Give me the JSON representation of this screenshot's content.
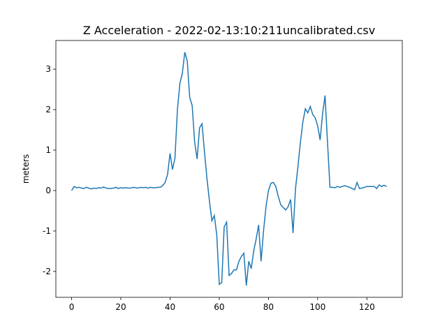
{
  "chart_data": {
    "type": "line",
    "title": "Z Acceleration - 2022-02-13:10:211uncalibrated.csv",
    "y_label": "meters",
    "x": [
      0,
      1,
      2,
      3,
      4,
      5,
      6,
      7,
      8,
      9,
      10,
      11,
      12,
      13,
      14,
      15,
      16,
      17,
      18,
      19,
      20,
      21,
      22,
      23,
      24,
      25,
      26,
      27,
      28,
      29,
      30,
      31,
      32,
      33,
      34,
      35,
      36,
      37,
      38,
      39,
      40,
      41,
      42,
      43,
      44,
      45,
      46,
      47,
      48,
      49,
      50,
      51,
      52,
      53,
      54,
      55,
      56,
      57,
      58,
      59,
      60,
      61,
      62,
      63,
      64,
      65,
      66,
      67,
      68,
      69,
      70,
      71,
      72,
      73,
      74,
      75,
      76,
      77,
      78,
      79,
      80,
      81,
      82,
      83,
      84,
      85,
      86,
      87,
      88,
      89,
      90,
      91,
      92,
      93,
      94,
      95,
      96,
      97,
      98,
      99,
      100,
      101,
      102,
      103,
      104,
      105,
      106,
      107,
      108,
      109,
      110,
      111,
      112,
      113,
      114,
      115,
      116,
      117,
      118,
      119,
      120,
      121,
      122,
      123,
      124,
      125,
      126,
      127,
      128
    ],
    "series": [
      {
        "color": "#1f77b4",
        "values": [
          0.0,
          0.1,
          0.07,
          0.08,
          0.06,
          0.05,
          0.08,
          0.06,
          0.04,
          0.06,
          0.05,
          0.07,
          0.06,
          0.09,
          0.06,
          0.05,
          0.05,
          0.06,
          0.08,
          0.05,
          0.07,
          0.06,
          0.07,
          0.06,
          0.06,
          0.08,
          0.07,
          0.06,
          0.08,
          0.07,
          0.08,
          0.06,
          0.08,
          0.07,
          0.07,
          0.08,
          0.08,
          0.12,
          0.2,
          0.4,
          0.92,
          0.52,
          0.8,
          2.0,
          2.65,
          2.9,
          3.42,
          3.2,
          2.3,
          2.1,
          1.2,
          0.78,
          1.55,
          1.65,
          0.95,
          0.3,
          -0.25,
          -0.75,
          -0.62,
          -1.1,
          -2.32,
          -2.28,
          -0.9,
          -0.78,
          -2.1,
          -2.05,
          -1.96,
          -1.96,
          -1.75,
          -1.63,
          -1.55,
          -2.35,
          -1.75,
          -1.93,
          -1.5,
          -1.2,
          -0.85,
          -1.75,
          -1.0,
          -0.4,
          0.0,
          0.18,
          0.2,
          0.1,
          -0.15,
          -0.35,
          -0.42,
          -0.48,
          -0.4,
          -0.22,
          -1.05,
          0.05,
          0.6,
          1.2,
          1.7,
          2.02,
          1.92,
          2.08,
          1.88,
          1.8,
          1.6,
          1.25,
          1.9,
          2.35,
          1.2,
          0.08,
          0.08,
          0.07,
          0.1,
          0.08,
          0.1,
          0.12,
          0.1,
          0.08,
          0.05,
          0.02,
          0.2,
          0.05,
          0.06,
          0.08,
          0.1,
          0.1,
          0.1,
          0.1,
          0.05,
          0.14,
          0.1,
          0.13,
          0.1
        ]
      }
    ],
    "xlim": [
      -6.4,
      134.4
    ],
    "xticks": [
      0,
      20,
      40,
      60,
      80,
      100,
      120
    ],
    "ylim": [
      -2.64,
      3.71
    ],
    "yticks": [
      -2,
      -1,
      0,
      1,
      2,
      3
    ]
  }
}
